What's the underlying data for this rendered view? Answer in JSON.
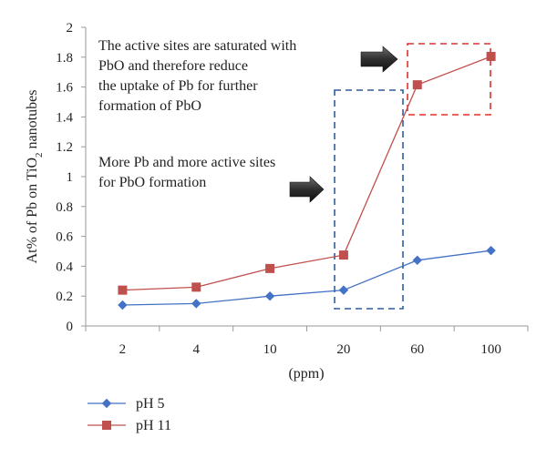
{
  "chart_data": {
    "type": "line",
    "categories": [
      "2",
      "4",
      "10",
      "20",
      "60",
      "100"
    ],
    "series": [
      {
        "name": "pH 5",
        "values": [
          0.14,
          0.15,
          0.2,
          0.24,
          0.44,
          0.505
        ],
        "color": "#4472c4",
        "marker": "diamond"
      },
      {
        "name": "pH 11",
        "values": [
          0.24,
          0.26,
          0.385,
          0.475,
          1.615,
          1.805
        ],
        "color": "#c0504d",
        "marker": "square"
      }
    ],
    "xlabel": "(ppm)",
    "ylabel_main": "At% of Pb on TiO",
    "ylabel_sub": "2",
    "ylabel_tail": " nanotubes",
    "ylim": [
      0,
      2
    ],
    "yticks": [
      "0",
      "0.2",
      "0.4",
      "0.6",
      "0.8",
      "1",
      "1.2",
      "1.4",
      "1.6",
      "1.8",
      "2"
    ],
    "grid": false,
    "legend_position": "bottom-left",
    "annotations": {
      "saturated": [
        "The active sites are saturated with",
        "PbO and therefore reduce",
        "the uptake of Pb for further",
        "formation of PbO"
      ],
      "more_sites": [
        "More Pb and more active sites",
        "for PbO formation"
      ]
    }
  }
}
